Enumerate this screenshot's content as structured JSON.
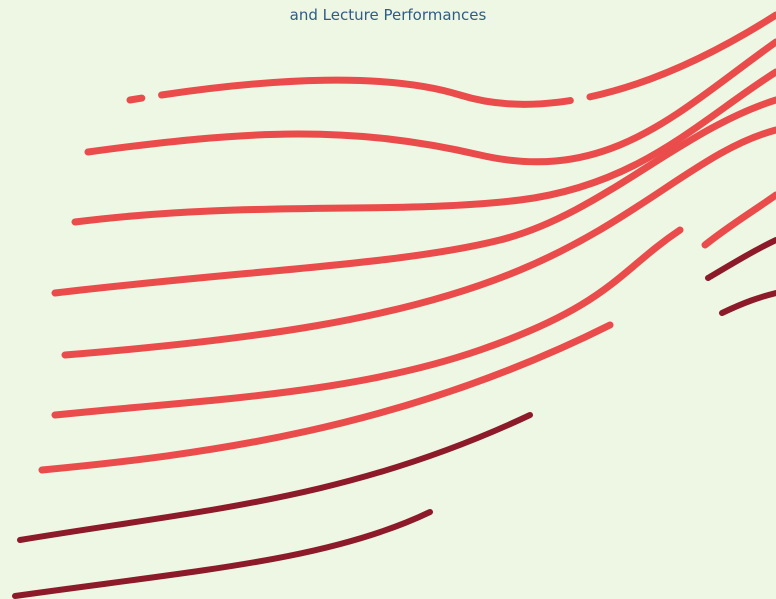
{
  "header": {
    "subtitle": "and Lecture Performances"
  }
}
